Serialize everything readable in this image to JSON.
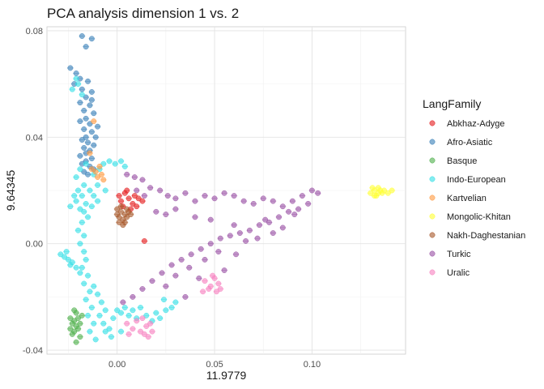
{
  "chart_data": {
    "type": "scatter",
    "title": "PCA analysis dimension 1 vs. 2",
    "xlabel": "11.9779",
    "ylabel": "9.64345",
    "xlim": [
      -0.036,
      0.148
    ],
    "ylim": [
      -0.0415,
      0.0815
    ],
    "x_ticks": [
      0.0,
      0.05,
      0.1
    ],
    "x_tick_labels": [
      "0.00",
      "0.05",
      "0.10"
    ],
    "y_ticks": [
      -0.04,
      0.0,
      0.04,
      0.08
    ],
    "y_tick_labels": [
      "-0.04",
      "0.00",
      "0.04",
      "0.08"
    ],
    "grid": true,
    "legend_title": "LangFamily",
    "legend_position": "right",
    "series": [
      {
        "name": "Abkhaz-Adyge",
        "color": "#E41A1C",
        "points": [
          [
            0.001,
            0.018
          ],
          [
            0.004,
            0.019
          ],
          [
            0.006,
            0.017
          ],
          [
            0.002,
            0.016
          ],
          [
            0.008,
            0.015
          ],
          [
            0.011,
            0.017
          ],
          [
            0.013,
            0.016
          ],
          [
            0.003,
            0.014
          ],
          [
            0.007,
            0.013
          ],
          [
            0.01,
            0.014
          ],
          [
            0.014,
            0.001
          ],
          [
            0.005,
            0.02
          ],
          [
            0.009,
            0.018
          ]
        ]
      },
      {
        "name": "Afro-Asiatic",
        "color": "#377EB8",
        "points": [
          [
            -0.018,
            0.078
          ],
          [
            -0.013,
            0.077
          ],
          [
            -0.016,
            0.074
          ],
          [
            -0.024,
            0.066
          ],
          [
            -0.021,
            0.064
          ],
          [
            -0.019,
            0.062
          ],
          [
            -0.015,
            0.061
          ],
          [
            -0.022,
            0.06
          ],
          [
            -0.018,
            0.058
          ],
          [
            -0.013,
            0.057
          ],
          [
            -0.016,
            0.055
          ],
          [
            -0.019,
            0.053
          ],
          [
            -0.014,
            0.052
          ],
          [
            -0.017,
            0.05
          ],
          [
            -0.012,
            0.049
          ],
          [
            -0.016,
            0.047
          ],
          [
            -0.019,
            0.046
          ],
          [
            -0.014,
            0.045
          ],
          [
            -0.017,
            0.043
          ],
          [
            -0.013,
            0.042
          ],
          [
            -0.016,
            0.04
          ],
          [
            -0.018,
            0.039
          ],
          [
            -0.015,
            0.038
          ],
          [
            -0.012,
            0.037
          ],
          [
            -0.017,
            0.036
          ],
          [
            -0.014,
            0.035
          ],
          [
            -0.016,
            0.034
          ],
          [
            -0.019,
            0.033
          ],
          [
            -0.013,
            0.032
          ],
          [
            -0.016,
            0.031
          ],
          [
            -0.018,
            0.03
          ],
          [
            -0.014,
            0.029
          ],
          [
            -0.012,
            0.028
          ],
          [
            -0.017,
            0.027
          ],
          [
            -0.015,
            0.026
          ],
          [
            -0.01,
            0.044
          ],
          [
            -0.011,
            0.04
          ],
          [
            -0.013,
            0.054
          ]
        ]
      },
      {
        "name": "Basque",
        "color": "#4DAF4A",
        "points": [
          [
            -0.024,
            -0.028
          ],
          [
            -0.022,
            -0.029
          ],
          [
            -0.02,
            -0.028
          ],
          [
            -0.023,
            -0.03
          ],
          [
            -0.021,
            -0.031
          ],
          [
            -0.019,
            -0.03
          ],
          [
            -0.024,
            -0.032
          ],
          [
            -0.022,
            -0.033
          ],
          [
            -0.02,
            -0.032
          ],
          [
            -0.018,
            -0.027
          ],
          [
            -0.021,
            -0.026
          ],
          [
            -0.023,
            -0.034
          ],
          [
            -0.019,
            -0.035
          ],
          [
            -0.021,
            -0.037
          ],
          [
            -0.022,
            -0.025
          ]
        ]
      },
      {
        "name": "Indo-European",
        "color": "#33E0E6",
        "points": [
          [
            -0.021,
            0.062
          ],
          [
            -0.02,
            0.06
          ],
          [
            -0.023,
            0.058
          ],
          [
            -0.018,
            0.056
          ],
          [
            -0.016,
            0.03
          ],
          [
            -0.019,
            0.028
          ],
          [
            -0.021,
            0.025
          ],
          [
            -0.017,
            0.022
          ],
          [
            -0.02,
            0.02
          ],
          [
            -0.018,
            0.018
          ],
          [
            -0.021,
            0.016
          ],
          [
            -0.016,
            0.015
          ],
          [
            -0.019,
            0.013
          ],
          [
            -0.017,
            0.012
          ],
          [
            -0.014,
            0.02
          ],
          [
            -0.012,
            0.018
          ],
          [
            -0.01,
            0.016
          ],
          [
            -0.013,
            0.014
          ],
          [
            -0.015,
            0.01
          ],
          [
            -0.018,
            0.008
          ],
          [
            -0.02,
            0.005
          ],
          [
            -0.017,
            0.003
          ],
          [
            -0.019,
            0.0
          ],
          [
            -0.017,
            -0.003
          ],
          [
            -0.016,
            -0.006
          ],
          [
            -0.018,
            -0.009
          ],
          [
            -0.015,
            -0.012
          ],
          [
            -0.017,
            -0.015
          ],
          [
            -0.014,
            -0.018
          ],
          [
            -0.016,
            -0.021
          ],
          [
            -0.013,
            -0.024
          ],
          [
            -0.015,
            -0.027
          ],
          [
            -0.012,
            -0.03
          ],
          [
            -0.014,
            -0.033
          ],
          [
            -0.011,
            -0.036
          ],
          [
            -0.029,
            -0.004
          ],
          [
            -0.027,
            -0.005
          ],
          [
            -0.025,
            -0.006
          ],
          [
            -0.023,
            -0.007
          ],
          [
            -0.026,
            -0.003
          ],
          [
            -0.024,
            -0.008
          ],
          [
            -0.021,
            -0.009
          ],
          [
            -0.019,
            -0.011
          ],
          [
            -0.012,
            -0.016
          ],
          [
            -0.01,
            -0.019
          ],
          [
            -0.008,
            -0.022
          ],
          [
            -0.006,
            -0.025
          ],
          [
            -0.009,
            -0.027
          ],
          [
            -0.007,
            -0.03
          ],
          [
            -0.004,
            -0.032
          ],
          [
            -0.002,
            -0.028
          ],
          [
            0.0,
            -0.025
          ],
          [
            0.002,
            -0.026
          ],
          [
            0.004,
            -0.024
          ],
          [
            0.006,
            -0.027
          ],
          [
            0.008,
            -0.025
          ],
          [
            0.01,
            -0.028
          ],
          [
            0.012,
            -0.024
          ],
          [
            0.015,
            -0.027
          ],
          [
            0.018,
            -0.029
          ],
          [
            0.02,
            -0.026
          ],
          [
            0.022,
            -0.028
          ],
          [
            0.025,
            -0.025
          ],
          [
            0.028,
            -0.024
          ],
          [
            0.03,
            -0.022
          ],
          [
            0.024,
            -0.021
          ],
          [
            -0.003,
            -0.035
          ],
          [
            -0.006,
            -0.033
          ],
          [
            0.002,
            -0.033
          ],
          [
            -0.012,
            0.026
          ],
          [
            -0.009,
            0.028
          ],
          [
            -0.007,
            0.03
          ],
          [
            -0.004,
            0.031
          ],
          [
            -0.001,
            0.03
          ],
          [
            0.002,
            0.031
          ],
          [
            0.004,
            0.029
          ],
          [
            -0.01,
            0.022
          ],
          [
            -0.006,
            0.02
          ],
          [
            -0.022,
            0.018
          ],
          [
            -0.024,
            0.014
          ]
        ]
      },
      {
        "name": "Kartvelian",
        "color": "#FF9940",
        "points": [
          [
            -0.012,
            0.046
          ],
          [
            -0.014,
            0.034
          ],
          [
            -0.009,
            0.029
          ],
          [
            -0.011,
            0.027
          ],
          [
            -0.008,
            0.026
          ],
          [
            -0.01,
            0.025
          ],
          [
            -0.013,
            0.028
          ],
          [
            -0.007,
            0.024
          ]
        ]
      },
      {
        "name": "Mongolic-Khitan",
        "color": "#FFFF33",
        "points": [
          [
            0.13,
            0.019
          ],
          [
            0.132,
            0.02
          ],
          [
            0.134,
            0.021
          ],
          [
            0.136,
            0.019
          ],
          [
            0.133,
            0.018
          ],
          [
            0.135,
            0.02
          ],
          [
            0.131,
            0.021
          ],
          [
            0.137,
            0.02
          ],
          [
            0.139,
            0.019
          ],
          [
            0.134,
            0.019
          ],
          [
            0.132,
            0.018
          ],
          [
            0.141,
            0.02
          ]
        ]
      },
      {
        "name": "Nakh-Daghestanian",
        "color": "#A65628",
        "points": [
          [
            0.0,
            0.013
          ],
          [
            0.002,
            0.012
          ],
          [
            0.004,
            0.011
          ],
          [
            0.001,
            0.01
          ],
          [
            0.003,
            0.009
          ],
          [
            0.005,
            0.01
          ],
          [
            0.0,
            0.011
          ],
          [
            0.002,
            0.014
          ],
          [
            0.006,
            0.012
          ],
          [
            0.004,
            0.008
          ],
          [
            0.001,
            0.008
          ],
          [
            0.003,
            0.007
          ],
          [
            0.005,
            0.013
          ],
          [
            0.007,
            0.011
          ]
        ]
      },
      {
        "name": "Turkic",
        "color": "#984EA3",
        "points": [
          [
            0.005,
            0.026
          ],
          [
            0.009,
            0.025
          ],
          [
            0.013,
            0.024
          ],
          [
            0.017,
            0.021
          ],
          [
            0.022,
            0.02
          ],
          [
            0.026,
            0.018
          ],
          [
            0.03,
            0.017
          ],
          [
            0.035,
            0.019
          ],
          [
            0.04,
            0.016
          ],
          [
            0.045,
            0.018
          ],
          [
            0.05,
            0.017
          ],
          [
            0.055,
            0.019
          ],
          [
            0.06,
            0.018
          ],
          [
            0.065,
            0.016
          ],
          [
            0.07,
            0.015
          ],
          [
            0.075,
            0.017
          ],
          [
            0.08,
            0.016
          ],
          [
            0.085,
            0.014
          ],
          [
            0.09,
            0.016
          ],
          [
            0.095,
            0.018
          ],
          [
            0.1,
            0.02
          ],
          [
            0.103,
            0.019
          ],
          [
            0.098,
            0.015
          ],
          [
            0.093,
            0.013
          ],
          [
            0.088,
            0.012
          ],
          [
            0.083,
            0.01
          ],
          [
            0.078,
            0.008
          ],
          [
            0.073,
            0.007
          ],
          [
            0.068,
            0.005
          ],
          [
            0.063,
            0.004
          ],
          [
            0.058,
            0.003
          ],
          [
            0.053,
            0.002
          ],
          [
            0.048,
            0.0
          ],
          [
            0.043,
            -0.002
          ],
          [
            0.038,
            -0.004
          ],
          [
            0.033,
            -0.006
          ],
          [
            0.028,
            -0.008
          ],
          [
            0.023,
            -0.011
          ],
          [
            0.018,
            -0.014
          ],
          [
            0.013,
            -0.017
          ],
          [
            0.008,
            -0.02
          ],
          [
            0.003,
            -0.022
          ],
          [
            0.02,
            0.012
          ],
          [
            0.025,
            0.011
          ],
          [
            0.03,
            0.013
          ],
          [
            0.04,
            0.01
          ],
          [
            0.048,
            0.009
          ],
          [
            0.06,
            0.007
          ],
          [
            0.072,
            0.002
          ],
          [
            0.08,
            0.004
          ],
          [
            0.085,
            0.006
          ],
          [
            0.052,
            -0.003
          ],
          [
            0.045,
            -0.006
          ],
          [
            0.037,
            -0.009
          ],
          [
            0.03,
            -0.012
          ],
          [
            0.025,
            -0.016
          ],
          [
            0.035,
            -0.02
          ],
          [
            0.042,
            -0.013
          ],
          [
            0.055,
            -0.01
          ],
          [
            0.061,
            -0.004
          ],
          [
            0.066,
            0.001
          ],
          [
            0.076,
            0.009
          ],
          [
            0.091,
            0.011
          ],
          [
            0.01,
            0.02
          ],
          [
            0.014,
            0.018
          ]
        ]
      },
      {
        "name": "Uralic",
        "color": "#F781BF",
        "points": [
          [
            0.045,
            -0.014
          ],
          [
            0.048,
            -0.016
          ],
          [
            0.05,
            -0.013
          ],
          [
            0.047,
            -0.017
          ],
          [
            0.052,
            -0.015
          ],
          [
            0.044,
            -0.018
          ],
          [
            0.049,
            -0.012
          ],
          [
            0.053,
            -0.017
          ],
          [
            0.051,
            -0.018
          ],
          [
            0.005,
            -0.03
          ],
          [
            0.008,
            -0.032
          ],
          [
            0.012,
            -0.033
          ],
          [
            0.015,
            -0.031
          ],
          [
            0.018,
            -0.033
          ],
          [
            0.01,
            -0.029
          ],
          [
            0.014,
            -0.034
          ],
          [
            0.017,
            -0.03
          ],
          [
            0.006,
            -0.034
          ],
          [
            0.013,
            -0.028
          ],
          [
            0.016,
            -0.035
          ]
        ]
      }
    ]
  }
}
